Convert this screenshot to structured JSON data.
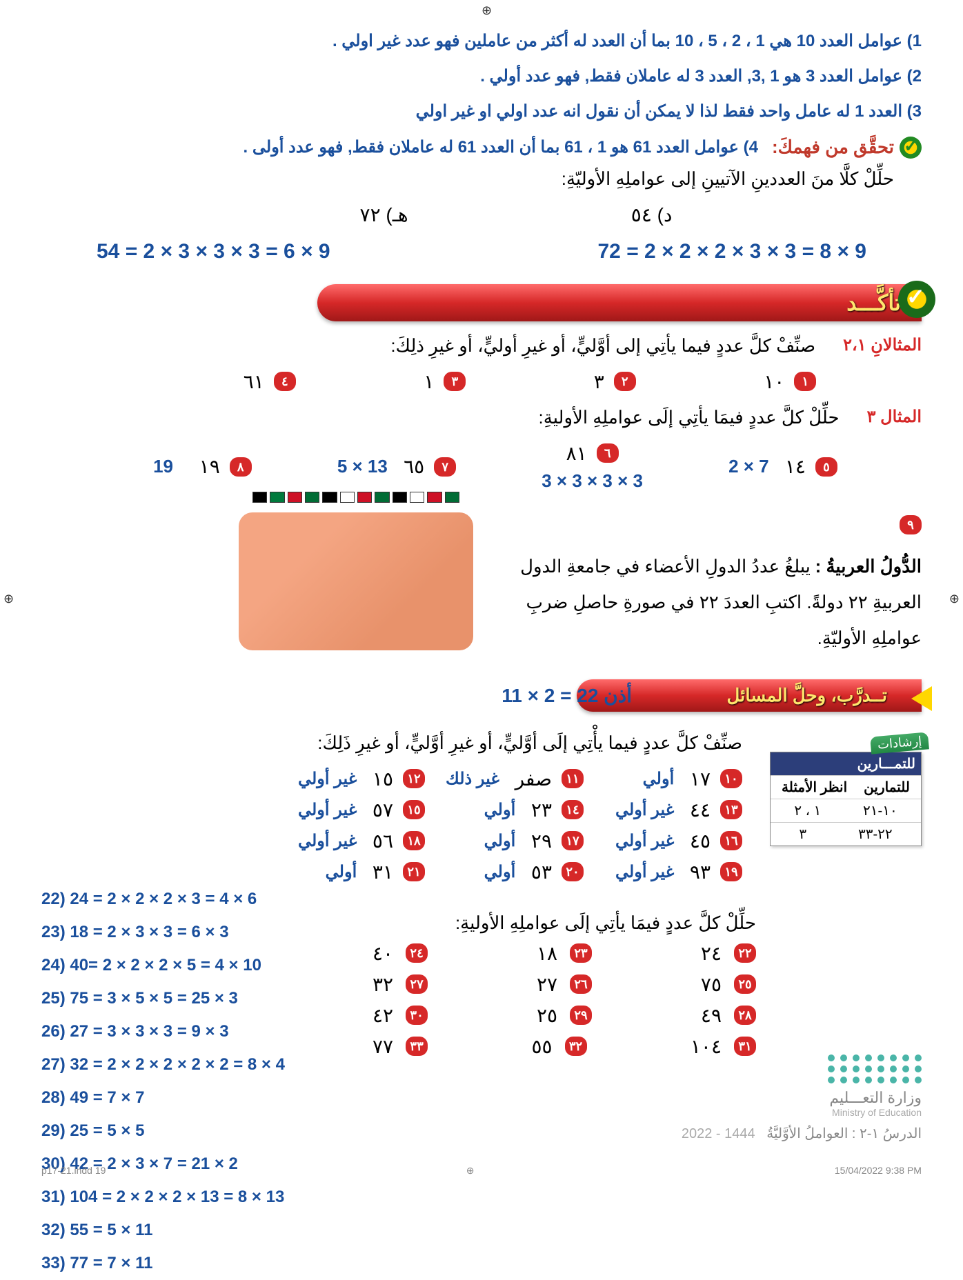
{
  "notes": {
    "n1": "1) عوامل العدد 10 هي 1 ، 2 ، 5 ، 10  بما أن العدد له أكثر من عاملين فهو عدد غير اولي .",
    "n2": "2) عوامل العدد 3 هو 1 ,3, العدد 3  له عاملان فقط, فهو عدد أولي .",
    "n3": "3) العدد 1 له عامل واحد فقط لذا لا يمكن أن نقول انه عدد اولي او غير اولي",
    "n4": "4) عوامل العدد 61 هو 1 ، 61 بما أن العدد 61 له عاملان فقط, فهو عدد أولى ."
  },
  "verify": {
    "label": "تحقَّق من فهمكَ:",
    "instr": "حلِّلْ كلَّا منَ العددينِ الآتيينِ إلى عواملِهِ الأوليّةِ:",
    "d_label": "د) ٥٤",
    "h_label": "هـ) ٧٢",
    "eq1": "72 = 2 × 2 × 2 × 3 × 3 = 8 × 9",
    "eq2": "54 = 2 × 3 × 3 × 3 = 6 × 9"
  },
  "banner1": "تأكَّـــد",
  "banner2": "تــدرَّب، وحلَّ المسائل",
  "ex12": {
    "label": "المثالانِ ٢،١",
    "instr": "صنِّفْ كلَّ عددٍ فيما يأتِي إلى أوَّليٍّ، أو غيرِ أوليٍّ، أو غيرِ ذلِكَ:",
    "items": [
      {
        "n": "١",
        "v": "١٠"
      },
      {
        "n": "٢",
        "v": "٣"
      },
      {
        "n": "٣",
        "v": "١"
      },
      {
        "n": "٤",
        "v": "٦١"
      }
    ]
  },
  "ex3": {
    "label": "المثال ٣",
    "instr": "حلِّلْ كلَّ عددٍ فيمَا يأتِي إلَى عواملِهِ الأوليةِ:",
    "items": [
      {
        "n": "٥",
        "v": "١٤",
        "a": "2 × 7"
      },
      {
        "n": "٦",
        "v": "٨١",
        "a": "3 × 3 × 3 × 3"
      },
      {
        "n": "٧",
        "v": "٦٥",
        "a": "5 × 13"
      },
      {
        "n": "٨",
        "v": "١٩",
        "a": "19"
      }
    ]
  },
  "q9": {
    "n": "٩",
    "title": "الدُّولُ العربيةُ :",
    "body": "يبلغُ عددُ الدولِ الأعضاء في جامعةِ الدول العربيةِ ٢٢ دولةً. اكتبِ العددَ ٢٢ في صورةِ حاصلِ ضربِ عواملِهِ الأوليّةِ.",
    "ans": "أذن 22 = 2 × 11"
  },
  "guide": {
    "badge": "إرشادات",
    "header": "للتمـــارين",
    "col1": "للتمارين",
    "col2": "انظر الأمثلة",
    "r1a": "١٠-٢١",
    "r1b": "١ ، ٢",
    "r2a": "٢٢-٣٣",
    "r2b": "٣"
  },
  "classify": {
    "instr": "صنِّفْ كلَّ عددٍ فيما يأْتِي إلَى أوَّليٍّ، أو غيرِ أوَّليٍّ، أو غيرِ ذَلِكَ:",
    "rows": [
      [
        {
          "n": "١٠",
          "v": "١٧",
          "a": "أولي"
        },
        {
          "n": "١١",
          "v": "صفر",
          "a": "غير ذلك"
        },
        {
          "n": "١٢",
          "v": "١٥",
          "a": "غير أولي"
        }
      ],
      [
        {
          "n": "١٣",
          "v": "٤٤",
          "a": "غير أولي"
        },
        {
          "n": "١٤",
          "v": "٢٣",
          "a": "أولي"
        },
        {
          "n": "١٥",
          "v": "٥٧",
          "a": "غير أولي"
        }
      ],
      [
        {
          "n": "١٦",
          "v": "٤٥",
          "a": "غير أولي"
        },
        {
          "n": "١٧",
          "v": "٢٩",
          "a": "أولي"
        },
        {
          "n": "١٨",
          "v": "٥٦",
          "a": "غير أولي"
        }
      ],
      [
        {
          "n": "١٩",
          "v": "٩٣",
          "a": "غير أولي"
        },
        {
          "n": "٢٠",
          "v": "٥٣",
          "a": "أولي"
        },
        {
          "n": "٢١",
          "v": "٣١",
          "a": "أولي"
        }
      ]
    ]
  },
  "factorize": {
    "instr": "حلِّلْ كلَّ عددٍ فيمَا يأتِي إلَى عواملِهِ الأوليةِ:",
    "rows": [
      [
        {
          "n": "٢٢",
          "v": "٢٤"
        },
        {
          "n": "٢٣",
          "v": "١٨"
        },
        {
          "n": "٢٤",
          "v": "٤٠"
        }
      ],
      [
        {
          "n": "٢٥",
          "v": "٧٥"
        },
        {
          "n": "٢٦",
          "v": "٢٧"
        },
        {
          "n": "٢٧",
          "v": "٣٢"
        }
      ],
      [
        {
          "n": "٢٨",
          "v": "٤٩"
        },
        {
          "n": "٢٩",
          "v": "٢٥"
        },
        {
          "n": "٣٠",
          "v": "٤٢"
        }
      ],
      [
        {
          "n": "٣١",
          "v": "١٠٤"
        },
        {
          "n": "٣٢",
          "v": "٥٥"
        },
        {
          "n": "٣٣",
          "v": "٧٧"
        }
      ]
    ]
  },
  "answers": [
    "22) 24 = 2 × 2 × 2 × 3 = 4 × 6",
    "23) 18 = 2 × 3 × 3 = 6 × 3",
    "24) 40= 2 × 2 × 2 × 5 = 4 × 10",
    "25) 75 = 3 × 5 × 5 = 25 × 3",
    "26) 27 = 3 × 3 × 3 = 9 × 3",
    "27) 32 = 2 × 2 × 2 × 2 × 2 = 8 × 4",
    "28) 49 = 7 × 7",
    "29) 25 = 5 × 5",
    "30) 42 = 2 × 3 × 7 = 21 × 2",
    "31) 104 = 2 × 2 × 2 × 13 = 8 × 13",
    "32) 55 = 5 × 11",
    "33) 77 = 7 × 11"
  ],
  "ministry": {
    "ar": "وزارة التعـــليم",
    "en": "Ministry of Education",
    "year": "2022 - 1444",
    "lesson": "الدرسُ ١-٢ : العواملُ الأوَّليَّةُ"
  },
  "footer": {
    "left": "p17-21.indd   19",
    "right": "15/04/2022   9:38 PM"
  },
  "flag_colors": [
    "#006c35",
    "#ce1126",
    "#fff",
    "#000",
    "#006c35",
    "#ce1126",
    "#fff",
    "#000",
    "#006c35",
    "#ce1126",
    "#007a3d",
    "#000"
  ]
}
